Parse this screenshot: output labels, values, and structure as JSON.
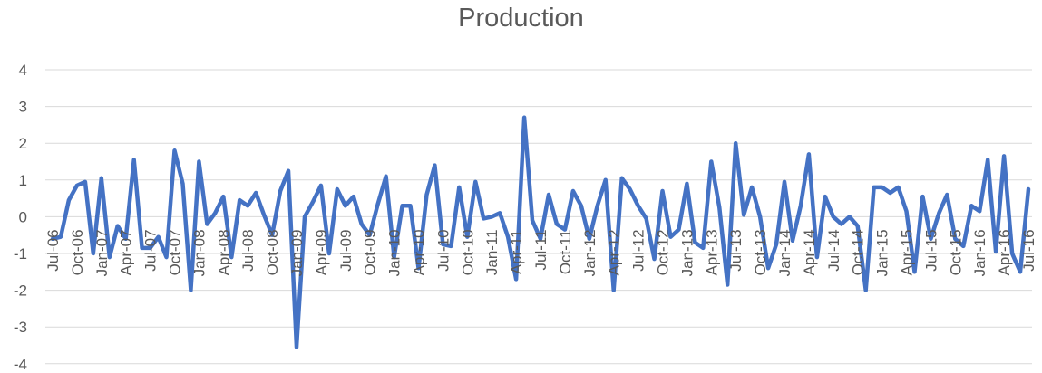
{
  "chart_data": {
    "type": "line",
    "title": "Production",
    "xlabel": "",
    "ylabel": "",
    "ylim": [
      -4,
      4
    ],
    "yticks": [
      4,
      3,
      2,
      1,
      0,
      -1,
      -2,
      -3,
      -4
    ],
    "grid": true,
    "legend": "none",
    "colors": {
      "line": "#4472c4",
      "grid": "#d9d9d9",
      "text": "#595959"
    },
    "x_tick_labels": [
      "Jul-06",
      "Oct-06",
      "Jan-07",
      "Apr-07",
      "Jul-07",
      "Oct-07",
      "Jan-08",
      "Apr-08",
      "Jul-08",
      "Oct-08",
      "Jan-09",
      "Apr-09",
      "Jul-09",
      "Oct-09",
      "Jan-10",
      "Apr-10",
      "Jul-10",
      "Oct-10",
      "Jan-11",
      "Apr-11",
      "Jul-11",
      "Oct-11",
      "Jan-12",
      "Apr-12",
      "Jul-12",
      "Oct-12",
      "Jan-13",
      "Apr-13",
      "Jul-13",
      "Oct-13",
      "Jan-14",
      "Apr-14",
      "Jul-14",
      "Oct-14",
      "Jan-15",
      "Apr-15",
      "Jul-15",
      "Oct-15",
      "Jan-16",
      "Apr-16",
      "Jul-16"
    ],
    "series": [
      {
        "values": [
          -0.6,
          -0.55,
          0.45,
          0.85,
          0.95,
          -1.0,
          1.05,
          -1.1,
          -0.25,
          -0.6,
          1.55,
          -0.85,
          -0.85,
          -0.55,
          -1.1,
          1.8,
          0.9,
          -2.0,
          1.5,
          -0.2,
          0.1,
          0.55,
          -1.1,
          0.45,
          0.3,
          0.65,
          0.05,
          -0.5,
          0.7,
          1.25,
          -3.55,
          0.0,
          0.4,
          0.85,
          -1.0,
          0.75,
          0.3,
          0.55,
          -0.2,
          -0.5,
          0.35,
          1.1,
          -1.1,
          0.3,
          0.3,
          -1.4,
          0.6,
          1.4,
          -0.75,
          -0.8,
          0.8,
          -0.55,
          0.95,
          -0.05,
          0.0,
          0.1,
          -0.55,
          -1.7,
          2.7,
          -0.1,
          -0.6,
          0.6,
          -0.2,
          -0.35,
          0.7,
          0.3,
          -0.6,
          0.3,
          1.0,
          -2.0,
          1.05,
          0.75,
          0.3,
          -0.05,
          -1.15,
          0.7,
          -0.55,
          -0.35,
          0.9,
          -0.7,
          -0.85,
          1.5,
          0.25,
          -1.85,
          2.0,
          0.05,
          0.8,
          0.0,
          -1.4,
          -0.75,
          0.95,
          -0.65,
          0.3,
          1.7,
          -1.1,
          0.55,
          0.0,
          -0.2,
          0.0,
          -0.25,
          -2.0,
          0.8,
          0.8,
          0.65,
          0.8,
          0.15,
          -1.5,
          0.55,
          -0.6,
          0.1,
          0.6,
          -0.6,
          -0.8,
          0.3,
          0.15,
          1.55,
          -0.95,
          1.65,
          -1.0,
          -1.5,
          0.75
        ]
      }
    ]
  }
}
